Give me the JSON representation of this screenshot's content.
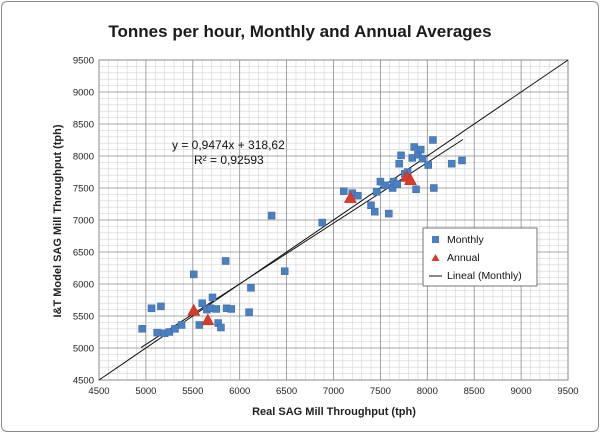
{
  "chart_data": {
    "type": "scatter",
    "title": "Tonnes per hour, Monthly and Annual Averages",
    "xlabel": "Real SAG Mill Throughput (tph)",
    "ylabel": "I&T Model SAG Mill Throughput (tph)",
    "xlim": [
      4500,
      9500
    ],
    "ylim": [
      4500,
      9500
    ],
    "xticks": [
      4500,
      5000,
      5500,
      6000,
      6500,
      7000,
      7500,
      8000,
      8500,
      9000,
      9500
    ],
    "yticks": [
      4500,
      5000,
      5500,
      6000,
      6500,
      7000,
      7500,
      8000,
      8500,
      9000,
      9500
    ],
    "grid": true,
    "legend_position": "right",
    "equation": "y = 0,9474x + 318,62",
    "r_squared": "R² = 0,92593",
    "trendline": {
      "name": "Lineal (Monthly)",
      "slope": 0.9474,
      "intercept": 318.62,
      "x_range": [
        4950,
        8380
      ]
    },
    "diagonal": {
      "x_range": [
        4500,
        9500
      ]
    },
    "series": [
      {
        "name": "Monthly",
        "marker": "square",
        "color": "#4a7fc1",
        "points": [
          [
            4960,
            5300
          ],
          [
            5060,
            5620
          ],
          [
            5120,
            5240
          ],
          [
            5160,
            5650
          ],
          [
            5200,
            5230
          ],
          [
            5250,
            5250
          ],
          [
            5310,
            5300
          ],
          [
            5380,
            5360
          ],
          [
            5510,
            6150
          ],
          [
            5570,
            5360
          ],
          [
            5600,
            5700
          ],
          [
            5650,
            5600
          ],
          [
            5690,
            5620
          ],
          [
            5710,
            5790
          ],
          [
            5750,
            5610
          ],
          [
            5770,
            5390
          ],
          [
            5800,
            5320
          ],
          [
            5850,
            6360
          ],
          [
            5860,
            5620
          ],
          [
            5910,
            5610
          ],
          [
            6100,
            5560
          ],
          [
            6120,
            5940
          ],
          [
            6340,
            7070
          ],
          [
            6480,
            6200
          ],
          [
            6880,
            6960
          ],
          [
            7110,
            7450
          ],
          [
            7200,
            7420
          ],
          [
            7260,
            7380
          ],
          [
            7400,
            7230
          ],
          [
            7440,
            7130
          ],
          [
            7460,
            7440
          ],
          [
            7500,
            7600
          ],
          [
            7550,
            7540
          ],
          [
            7590,
            7100
          ],
          [
            7630,
            7500
          ],
          [
            7640,
            7600
          ],
          [
            7680,
            7560
          ],
          [
            7700,
            7880
          ],
          [
            7720,
            8010
          ],
          [
            7760,
            7720
          ],
          [
            7790,
            7750
          ],
          [
            7840,
            7970
          ],
          [
            7860,
            8140
          ],
          [
            7880,
            7480
          ],
          [
            7900,
            8020
          ],
          [
            7930,
            8100
          ],
          [
            7950,
            7960
          ],
          [
            8010,
            7860
          ],
          [
            8060,
            8250
          ],
          [
            8070,
            7500
          ],
          [
            8260,
            7880
          ],
          [
            8370,
            7930
          ]
        ]
      },
      {
        "name": "Annual",
        "marker": "triangle",
        "color": "#d93b2b",
        "points": [
          [
            5510,
            5590
          ],
          [
            5660,
            5440
          ],
          [
            7180,
            7350
          ],
          [
            7780,
            7680
          ],
          [
            7820,
            7630
          ]
        ]
      }
    ]
  }
}
